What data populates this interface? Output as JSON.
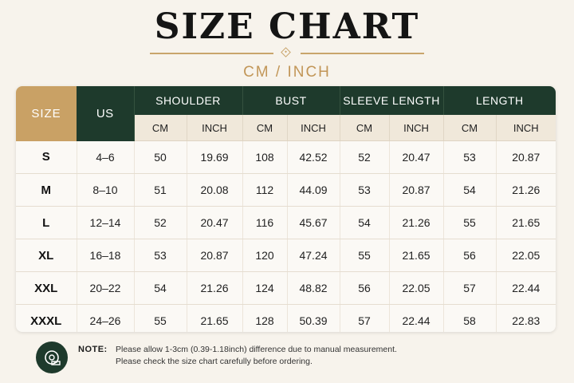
{
  "title": "SIZE CHART",
  "subtitle": "CM / INCH",
  "colors": {
    "primary_green": "#1e3a2c",
    "gold": "#c9a165",
    "background": "#f7f3ec"
  },
  "table": {
    "headers": {
      "size": "SIZE",
      "us": "US",
      "groups": [
        "SHOULDER",
        "BUST",
        "SLEEVE LENGTH",
        "LENGTH"
      ],
      "cm": "CM",
      "inch": "INCH"
    },
    "rows": [
      {
        "size": "S",
        "us": "4–6",
        "shoulder_cm": "50",
        "shoulder_in": "19.69",
        "bust_cm": "108",
        "bust_in": "42.52",
        "sleeve_cm": "52",
        "sleeve_in": "20.47",
        "length_cm": "53",
        "length_in": "20.87"
      },
      {
        "size": "M",
        "us": "8–10",
        "shoulder_cm": "51",
        "shoulder_in": "20.08",
        "bust_cm": "112",
        "bust_in": "44.09",
        "sleeve_cm": "53",
        "sleeve_in": "20.87",
        "length_cm": "54",
        "length_in": "21.26"
      },
      {
        "size": "L",
        "us": "12–14",
        "shoulder_cm": "52",
        "shoulder_in": "20.47",
        "bust_cm": "116",
        "bust_in": "45.67",
        "sleeve_cm": "54",
        "sleeve_in": "21.26",
        "length_cm": "55",
        "length_in": "21.65"
      },
      {
        "size": "XL",
        "us": "16–18",
        "shoulder_cm": "53",
        "shoulder_in": "20.87",
        "bust_cm": "120",
        "bust_in": "47.24",
        "sleeve_cm": "55",
        "sleeve_in": "21.65",
        "length_cm": "56",
        "length_in": "22.05"
      },
      {
        "size": "XXL",
        "us": "20–22",
        "shoulder_cm": "54",
        "shoulder_in": "21.26",
        "bust_cm": "124",
        "bust_in": "48.82",
        "sleeve_cm": "56",
        "sleeve_in": "22.05",
        "length_cm": "57",
        "length_in": "22.44"
      },
      {
        "size": "XXXL",
        "us": "24–26",
        "shoulder_cm": "55",
        "shoulder_in": "21.65",
        "bust_cm": "128",
        "bust_in": "50.39",
        "sleeve_cm": "57",
        "sleeve_in": "22.44",
        "length_cm": "58",
        "length_in": "22.83"
      }
    ]
  },
  "note": {
    "icon": "measuring-tape-icon",
    "label": "NOTE:",
    "line1": "Please allow 1-3cm (0.39-1.18inch) difference due to manual measurement.",
    "line2": "Please check the size chart carefully before ordering."
  }
}
